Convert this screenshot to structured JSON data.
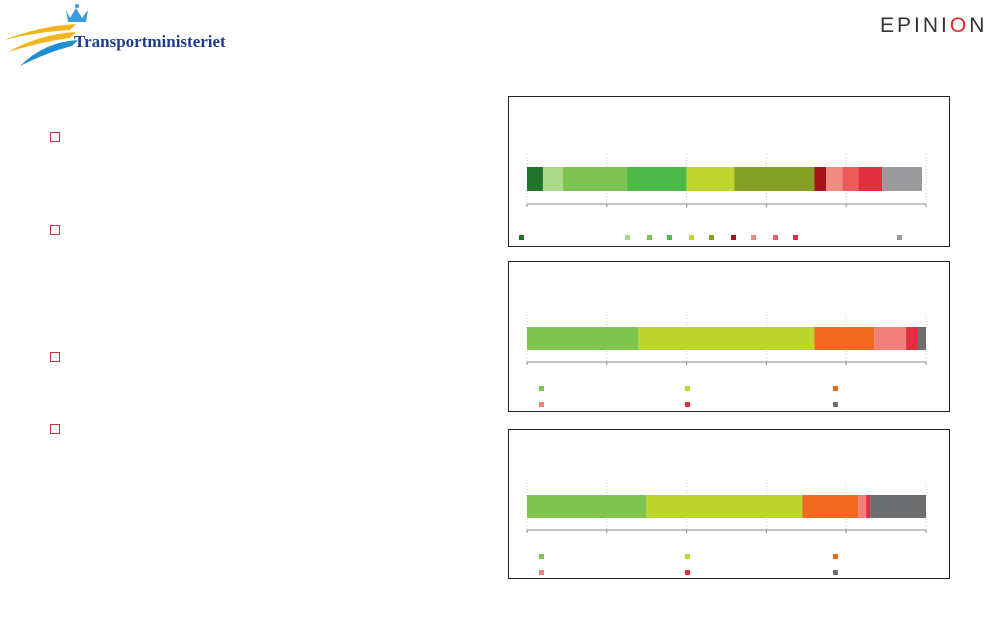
{
  "header": {
    "ministry_name": "Transportministeriet",
    "brand_name_before": "EPINI",
    "brand_name_o": "O",
    "brand_name_after": "N"
  },
  "colors": {
    "ministry_blue": "#1f3d8a",
    "ministry_yellow": "#f2b51b",
    "bullet_red": "#c8323a",
    "brand_red": "#e8232d"
  },
  "chart_data": [
    {
      "type": "bar",
      "orientation": "horizontal-stacked-100",
      "grid": true,
      "legend_position": "bottom",
      "xlim": [
        0,
        100
      ],
      "series": [
        {
          "color": "#22742c",
          "values": [
            4
          ]
        },
        {
          "color": "#a9d98a",
          "values": [
            5
          ]
        },
        {
          "color": "#7dc353",
          "values": [
            16
          ]
        },
        {
          "color": "#4cb848",
          "values": [
            15
          ]
        },
        {
          "color": "#bfd630",
          "values": [
            12
          ]
        },
        {
          "color": "#85a024",
          "values": [
            20
          ]
        },
        {
          "color": "#a8141c",
          "values": [
            3
          ]
        },
        {
          "color": "#f28b82",
          "values": [
            4
          ]
        },
        {
          "color": "#ef5b5b",
          "values": [
            4
          ]
        },
        {
          "color": "#e0303f",
          "values": [
            6
          ]
        },
        {
          "color": "#9a9a9c",
          "values": [
            10
          ]
        }
      ]
    },
    {
      "type": "bar",
      "orientation": "horizontal-stacked-100",
      "grid": true,
      "legend_position": "bottom",
      "xlim": [
        0,
        100
      ],
      "series": [
        {
          "color": "#80c450",
          "values": [
            28
          ]
        },
        {
          "color": "#bcd62e",
          "values": [
            44
          ]
        },
        {
          "color": "#f26a21",
          "values": [
            15
          ]
        },
        {
          "color": "#f08079",
          "values": [
            8
          ]
        },
        {
          "color": "#e0303f",
          "values": [
            3
          ]
        },
        {
          "color": "#6d6e70",
          "values": [
            2
          ]
        }
      ]
    },
    {
      "type": "bar",
      "orientation": "horizontal-stacked-100",
      "grid": true,
      "legend_position": "bottom",
      "xlim": [
        0,
        100
      ],
      "series": [
        {
          "color": "#80c450",
          "values": [
            30
          ]
        },
        {
          "color": "#bcd62e",
          "values": [
            39
          ]
        },
        {
          "color": "#f26a21",
          "values": [
            14
          ]
        },
        {
          "color": "#f08079",
          "values": [
            2
          ]
        },
        {
          "color": "#e0303f",
          "values": [
            1
          ]
        },
        {
          "color": "#6d6e70",
          "values": [
            14
          ]
        }
      ]
    }
  ]
}
